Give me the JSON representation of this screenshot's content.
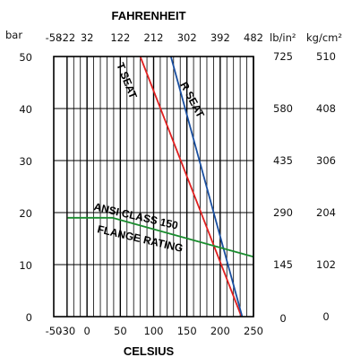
{
  "chart_data": {
    "type": "line",
    "title": "",
    "xlabel": "CELSIUS",
    "x2label": "FAHRENHEIT",
    "ylabel": "bar",
    "y2label": "lb/in²",
    "y3label": "kg/cm²",
    "xlim": [
      -50,
      250
    ],
    "ylim": [
      0,
      50
    ],
    "x_ticks": [
      "-50",
      "-30",
      "0",
      "50",
      "100",
      "150",
      "200",
      "250"
    ],
    "x_tick_values": [
      -50,
      -30,
      0,
      50,
      100,
      150,
      200,
      250
    ],
    "x2_ticks": [
      "-58",
      "-22",
      "32",
      "122",
      "212",
      "302",
      "392",
      "482"
    ],
    "y_ticks": [
      "0",
      "10",
      "20",
      "30",
      "40",
      "50"
    ],
    "y2_ticks": [
      "0",
      "145",
      "290",
      "435",
      "580",
      "725"
    ],
    "y3_ticks": [
      "0",
      "102",
      "204",
      "306",
      "408",
      "510"
    ],
    "grid": true,
    "series": [
      {
        "name": "T SEAT",
        "color": "#e02020",
        "x": [
          80,
          232
        ],
        "y": [
          50,
          0
        ]
      },
      {
        "name": "R SEAT",
        "color": "#1a4fa0",
        "x": [
          126,
          233
        ],
        "y": [
          50,
          0
        ]
      },
      {
        "name": "ANSI CLASS 150 FLANGE RATING",
        "color": "#1a8c2e",
        "x": [
          -29,
          38,
          250
        ],
        "y": [
          19,
          19,
          11.5
        ]
      }
    ],
    "annotations": {
      "t_seat": "T SEAT",
      "r_seat": "R SEAT",
      "ansi_line1": "ANSI CLASS 150",
      "ansi_line2": "FLANGE RATING"
    }
  }
}
